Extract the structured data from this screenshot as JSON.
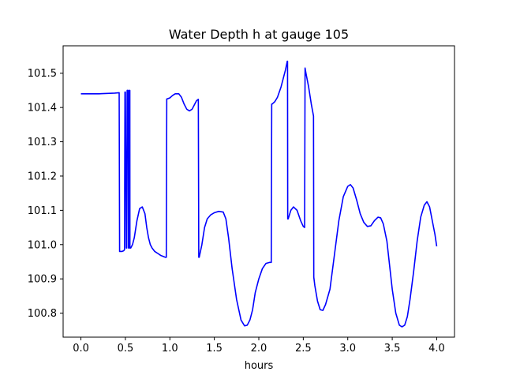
{
  "chart_data": {
    "type": "line",
    "title": "Water Depth h at gauge 105",
    "xlabel": "hours",
    "ylabel": "",
    "xlim": [
      -0.2,
      4.2
    ],
    "ylim": [
      100.73,
      101.58
    ],
    "xticks": [
      0.0,
      0.5,
      1.0,
      1.5,
      2.0,
      2.5,
      3.0,
      3.5,
      4.0
    ],
    "xtick_labels": [
      "0.0",
      "0.5",
      "1.0",
      "1.5",
      "2.0",
      "2.5",
      "3.0",
      "3.5",
      "4.0"
    ],
    "yticks": [
      100.8,
      100.9,
      101.0,
      101.1,
      101.2,
      101.3,
      101.4,
      101.5
    ],
    "ytick_labels": [
      "100.8",
      "100.9",
      "101.0",
      "101.1",
      "101.2",
      "101.3",
      "101.4",
      "101.5"
    ],
    "grid": false,
    "series": [
      {
        "color": "#0000ff",
        "x": [
          0.0,
          0.2,
          0.3,
          0.38,
          0.43,
          0.435,
          0.44,
          0.46,
          0.48,
          0.49,
          0.495,
          0.5,
          0.51,
          0.515,
          0.52,
          0.53,
          0.535,
          0.54,
          0.545,
          0.55,
          0.551,
          0.56,
          0.58,
          0.6,
          0.63,
          0.66,
          0.69,
          0.72,
          0.74,
          0.76,
          0.78,
          0.8,
          0.83,
          0.86,
          0.9,
          0.95,
          0.96,
          0.965,
          0.97,
          1.0,
          1.03,
          1.06,
          1.1,
          1.13,
          1.16,
          1.19,
          1.22,
          1.25,
          1.28,
          1.3,
          1.32,
          1.325,
          1.33,
          1.36,
          1.39,
          1.42,
          1.46,
          1.5,
          1.55,
          1.6,
          1.63,
          1.66,
          1.7,
          1.75,
          1.8,
          1.84,
          1.87,
          1.9,
          1.93,
          1.96,
          2.0,
          2.04,
          2.08,
          2.12,
          2.14,
          2.145,
          2.15,
          2.18,
          2.21,
          2.25,
          2.28,
          2.3,
          2.32,
          2.323,
          2.325,
          2.33,
          2.36,
          2.39,
          2.43,
          2.47,
          2.5,
          2.515,
          2.52,
          2.53,
          2.56,
          2.59,
          2.615,
          2.618,
          2.63,
          2.66,
          2.69,
          2.72,
          2.75,
          2.8,
          2.85,
          2.9,
          2.95,
          3.0,
          3.03,
          3.06,
          3.1,
          3.14,
          3.18,
          3.22,
          3.26,
          3.3,
          3.34,
          3.37,
          3.4,
          3.44,
          3.47,
          3.5,
          3.54,
          3.58,
          3.61,
          3.64,
          3.67,
          3.7,
          3.74,
          3.78,
          3.82,
          3.86,
          3.89,
          3.92,
          3.95,
          3.98,
          4.0
        ],
        "y": [
          101.44,
          101.44,
          101.441,
          101.442,
          101.443,
          100.98,
          100.98,
          100.98,
          100.982,
          100.985,
          101.445,
          101.445,
          100.99,
          100.99,
          101.45,
          101.45,
          100.99,
          100.99,
          101.45,
          101.45,
          100.99,
          100.99,
          101.0,
          101.02,
          101.07,
          101.105,
          101.11,
          101.09,
          101.05,
          101.02,
          101.0,
          100.99,
          100.98,
          100.975,
          100.968,
          100.963,
          100.963,
          101.425,
          101.425,
          101.428,
          101.435,
          101.44,
          101.44,
          101.43,
          101.41,
          101.395,
          101.39,
          101.395,
          101.41,
          101.42,
          101.424,
          100.963,
          100.963,
          101.0,
          101.05,
          101.075,
          101.087,
          101.093,
          101.097,
          101.095,
          101.075,
          101.02,
          100.93,
          100.84,
          100.78,
          100.763,
          100.765,
          100.78,
          100.81,
          100.86,
          100.9,
          100.93,
          100.945,
          100.948,
          100.948,
          101.41,
          101.41,
          101.417,
          101.43,
          101.46,
          101.49,
          101.51,
          101.535,
          101.535,
          101.075,
          101.075,
          101.1,
          101.11,
          101.1,
          101.07,
          101.053,
          101.05,
          101.515,
          101.5,
          101.46,
          101.41,
          101.375,
          100.905,
          100.88,
          100.835,
          100.81,
          100.808,
          100.825,
          100.87,
          100.97,
          101.07,
          101.14,
          101.17,
          101.175,
          101.165,
          101.13,
          101.09,
          101.065,
          101.053,
          101.055,
          101.07,
          101.08,
          101.078,
          101.06,
          101.01,
          100.94,
          100.87,
          100.8,
          100.765,
          100.76,
          100.765,
          100.79,
          100.84,
          100.92,
          101.01,
          101.08,
          101.115,
          101.125,
          101.11,
          101.07,
          101.03,
          100.995
        ]
      }
    ]
  }
}
